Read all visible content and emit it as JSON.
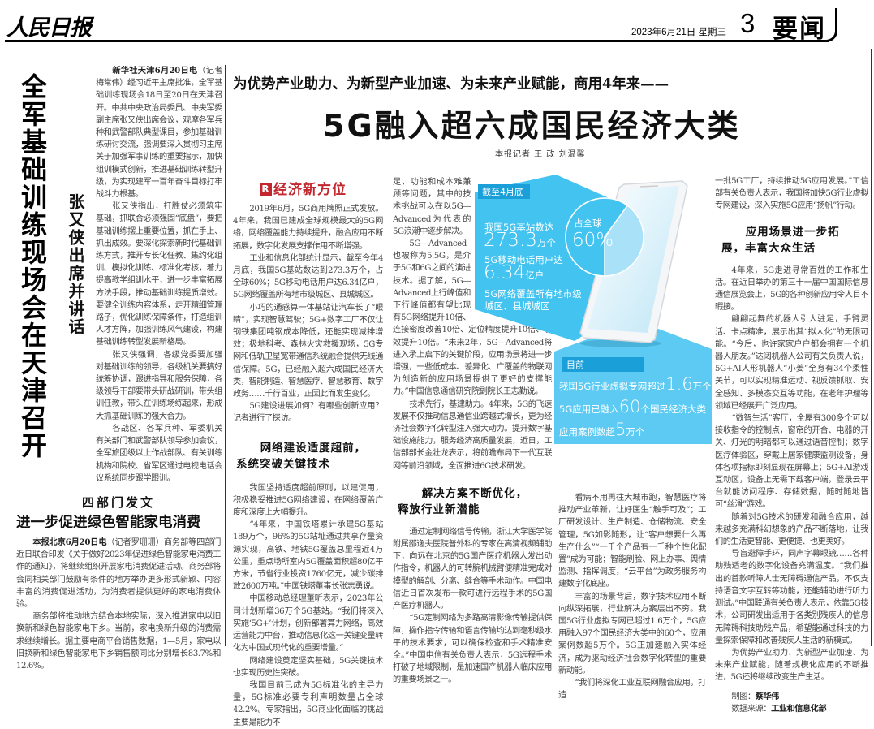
{
  "masthead": {
    "logo": "人民日报",
    "date": "2023年6月21日  星期三",
    "page_number": "3",
    "section": "要闻"
  },
  "left_story": {
    "headline": "全军基础训练现场会在天津召开",
    "subheadline": "张又侠出席并讲话",
    "lead": "新华社天津6月20日电",
    "paragraphs": [
      "（记者梅常伟）经习近平主席批准，全军基础训练现场会18日至20日在天津召开。中共中央政治局委员、中央军委副主席张又侠出席会议，观摩各军兵种和武警部队典型课目，参加基础训练研讨交流，强调要深入贯彻习主席关于加强军事训练的重要指示，加快组训模式创新，推进基础训练转型升级，为实现建军一百年奋斗目标打牢战斗力根基。",
      "张又侠指出，打胜仗必须筑牢基础，抓联合必须强固“底盘”，要把基础训练摆上重要位置，抓在手上、抓出成效。要深化探索新时代基础训练方式，推开专长化任教、集约化组训、模拟化训练、标准化考核，着力提高教学组训水平，进一步丰富拓展方法手段，推动基础训练提质增效。要健全训练内容体系，走开精细管理路子，优化训练保障条件，打造组训人才方阵，加强训练风气建设，构建基础训练转型发展新格局。",
      "张又侠强调，各级党委要加强对基础训练的领导，各级机关要搞好统筹协调，跟进指导和服务保障，各级领导干部要带头研战研训，带头组训任教，带头在训练场练起来，形成大抓基础训练的强大合力。",
      "各战区、各军兵种、军委机关有关部门和武警部队领导参加会议，全军旅团级以上作战部队、有关训练机构和院校、省军区通过电视电话会议系统同步跟学跟训。"
    ]
  },
  "bottom_left_story": {
    "kicker": "四部门发文",
    "headline": "进一步促进绿色智能家电消费",
    "lead": "本报北京6月20日电",
    "paragraphs": [
      "（记者罗珊珊）商务部等四部门近日联合印发《关于做好2023年促进绿色智能家电消费工作的通知》，将继续组织开展家电消费促进活动。商务部将会同相关部门鼓励有条件的地方举办更多形式新颖、内容丰富的消费促进活动，为消费者提供更好的家电消费体验。",
      "商务部将推动地方结合本地实际，深入推进家电以旧换新和绿色智能家电下乡。当前，家电换新升级的消费需求继续增长。据主要电商平台销售数据，1—5月，家电以旧换新和绿色智能家电下乡销售额同比分别增长83.7%和12.6%。"
    ]
  },
  "main_story": {
    "kicker": "为优势产业助力、为新型产业加速、为未来产业赋能，商用4年来——",
    "headline": "5G融入超六成国民经济大类",
    "byline": "本报记者  王  政  刘温馨",
    "column_label": "经济新方位",
    "column_label_badge": "R",
    "section1_paragraphs": [
      "2019年6月，5G商用牌照正式发放。4年来，我国已建成全球规模最大的5G网络，网络覆盖能力持续提升，融合应用不断拓展，数字化发展支撑作用不断增强。",
      "工业和信息化部统计显示，截至今年4月底，我国5G基站数达到273.3万个，占全球60%；5G移动电话用户达6.34亿户，5G网络覆盖所有地市级城区、县城城区。",
      "小巧的通感算一体基站让汽车长了“眼睛”，实现智慧驾驶；5G+数字工厂不仅让钢铁集团吨钢成本降低，还能实现减排增效；极地科考、森林火灾救援现场，5G专网和低轨卫星宽带通信系统融合提供无线通信保障。5G，已经融入超六成国民经济大类，智能制造、智慧医疗、智慧教育、数字政务……千行百业，正因此而发生变化。",
      "5G建设进展如何？有哪些创新应用？记者进行了探访。"
    ],
    "section2_heading": [
      "网络建设适度超前，",
      "系统突破关键技术"
    ],
    "section2_paragraphs": [
      "我国坚持适度超前原则，以建促用，积极稳妥推进5G网络建设，在网络覆盖广度和深度上大幅提升。",
      "“4年来，中国铁塔累计承建5G基站189万个，96%的5G站址通过共享存量资源实现，高铁、地铁5G覆盖总里程近4万公里，重点场所室内5G覆盖面积超80亿平方米，节省行业投资1760亿元，减少碳排放2600万吨。”中国铁塔董事长张志勇说。",
      "中国移动总经理董昕表示，2023年公司计划新增36万个5G基站。“我们将深入实施‘5G+’计划，创新部署算力网络，高效运营能力中台，推动信息化这一关键变量转化为中国式现代化的重要增量。”",
      "网络建设奠定坚实基础，5G关键技术也实现历史性突破。",
      "我国目前已成为5G标准化的主导力量，5G标准必要专利声明数量占全球42.2%。专家指出，5G商业化面临的挑战主要是能力不"
    ],
    "section2_continued": [
      "足、功能和成本难兼顾等问题，其中的技术挑战可以在以5G—Advanced为代表的5G浪潮中逐步解决。",
      "5G—Advanced也被称为5.5G，是介于5G和6G之间的演进技术。据了解，5G—Advanced上行峰值和下行峰值都有望比现有5G网络提升10倍、连接密度改善10倍、定位精度提升10倍、能效提升10倍。“未来2年，5G—Advanced将进入承上启下的关键阶段，应用场景将进一步增强，一些低成本、差异化、广覆盖的物联网为创造新的应用场景提供了更好的支撑能力。”中国信息通信研究院副院长王志勤说。",
      "技术先行，基建助力。4年来，5G的飞速发展不仅推动信息通信业跨越式增长，更为经济社会数字化转型注入强大动力。提升数字基础设施能力，服务经济高质量发展，近日，工信部部长金壮龙表示，将前瞻布局下一代互联网等前沿领域，全面推进6G技术研发。"
    ],
    "section3_heading": [
      "解决方案不断优化，",
      "释放行业新潜能"
    ],
    "section3_paragraphs": [
      "通过定制网络信号传输，浙江大学医学院附属邵逸夫医院普外科的专家在高清视频辅助下，向远在北京的5G国产医疗机器人发出动作指令，机器人的可转腕机械臂便精准完成对模型的解剖、分离、缝合等手术动作。中国电信近日首次发布一款可进行远程手术的5G国产医疗机器人。",
      "“5G定制网络为多路高清影像传输提供保障，操作指令传输和语言传输均达到毫秒级水平的技术要求，可以确保检查和手术精准安全。”中国电信有关负责人表示，5G远程手术打破了地域限制，是加速国产机器人临床应用的重要场景之一。"
    ],
    "section3_continued": [
      "看病不用再往大城市跑，智慧医疗将推动产业革新，让好医生“触手可及”；工厂研发设计、生产制造、仓储物流、安全管理，5G如影随形，让“客户想要什么再生产什么”“一千个产品有一千种个性化配置”成为可能；智能刷脸、网上办事、舆情监测、指挥调度，“云平台”为政务服务构建数字化底座。",
      "丰富的场景背后，数字技术应用不断向纵深拓展，行业解决方案层出不穷。我国5G行业虚拟专网已超过1.6万个，5G应用融入97个国民经济大类中的60个，应用案例数超5万个。5G正加速融入实体经济，成为驱动经济社会数字化转型的重要新动能。",
      "“我们将深化工业互联网融合应用，打造"
    ],
    "col4_top": "一批5G工厂，持续推动5G应用发展。”工信部有关负责人表示，我国将加快5G行业虚拟专网建设，深入实施5G应用“扬帆”行动。",
    "section4_heading": [
      "应用场景进一步拓",
      "展，丰富大众生活"
    ],
    "section4_paragraphs": [
      "4年来，5G走进寻常百姓的工作和生活。在近日举办的第三十一届中国国际信息通信展览会上，5G的各种创新应用令人目不暇接。",
      "翩翩起舞的机器人引人驻足，手臂灵活、卡点精准，展示出其“拟人化”的无限可能。“今后，也许家家户户都会拥有一个机器人朋友。”达闼机器人公司有关负责人说，5G+AI人形机器人“小姜”全身有34个柔性关节，可以实现精准运动、视反馈抓取、安全感知、多模态交互等功能，在老年护理等领域已经展开广泛应用。",
      "“数智生活”客厅，全屋有300多个可以接收指令的控制点，窗帘的开合、电器的开关、灯光的明暗都可以通过语音控制；数字医疗体验区，穿戴上居家健康监测设备，身体各项指标即刻显现在屏幕上；5G+AI游戏互动区，设备上无需下载客户端，登录云平台就能访问程序、存储数据，随时随地皆可“丝滑”游戏。",
      "随着对5G技术的研发和融合应用，越来越多充满科幻想象的产品不断落地，让我们的生活更智能、更便捷、也更美好。",
      "导盲避障手环，同声字幕眼镜……各种助残适老的数字化设备充满温度。“我们推出的首款听障人士无障碍通信产品，不仅支持语音文字互转等功能，还能辅助进行听力测试。”中国联通有关负责人表示，依靠5G技术，公司研发出适用于各类别残疾人的信息无障碍科技助残产品，希望能通过科技的力量探索保障和改善残疾人生活的新模式。",
      "为优势产业助力、为新型产业加速、为未来产业赋能，随着规模化应用的不断推进，5G还将继续改变生产生活。"
    ],
    "credits": {
      "chart_label": "制图：",
      "chart_by": "蔡华伟",
      "source_label": "数据来源：",
      "source": "工业和信息化部"
    }
  },
  "infographic": {
    "colors": {
      "primary": "#42c3f0",
      "band": "#1a9fd8",
      "pie_rest": "#a9e2f8"
    },
    "panel1": {
      "label": "截至4月底",
      "stat1_text": "我国5G基站数达",
      "stat1_value": "273.3",
      "stat1_unit": "万个",
      "stat2_text": "5G移动电话用户达",
      "stat2_value": "6.34",
      "stat2_unit": "亿户",
      "stat3_line1": "5G网络覆盖所有地市级",
      "stat3_line2": "城区、县城城区",
      "pie_label": "占全球",
      "pie_value": "60%",
      "pie_share": 0.6
    },
    "panel2": {
      "label": "目前",
      "line1_text": "我国5G行业虚拟专网超过",
      "line1_value": "1.6",
      "line1_unit": "万个",
      "line2_text": "5G应用已融入",
      "line2_value": "60",
      "line2_unit": "个国民经济大类",
      "line3_text": "应用案例数超",
      "line3_value": "5",
      "line3_unit": "万个"
    }
  }
}
